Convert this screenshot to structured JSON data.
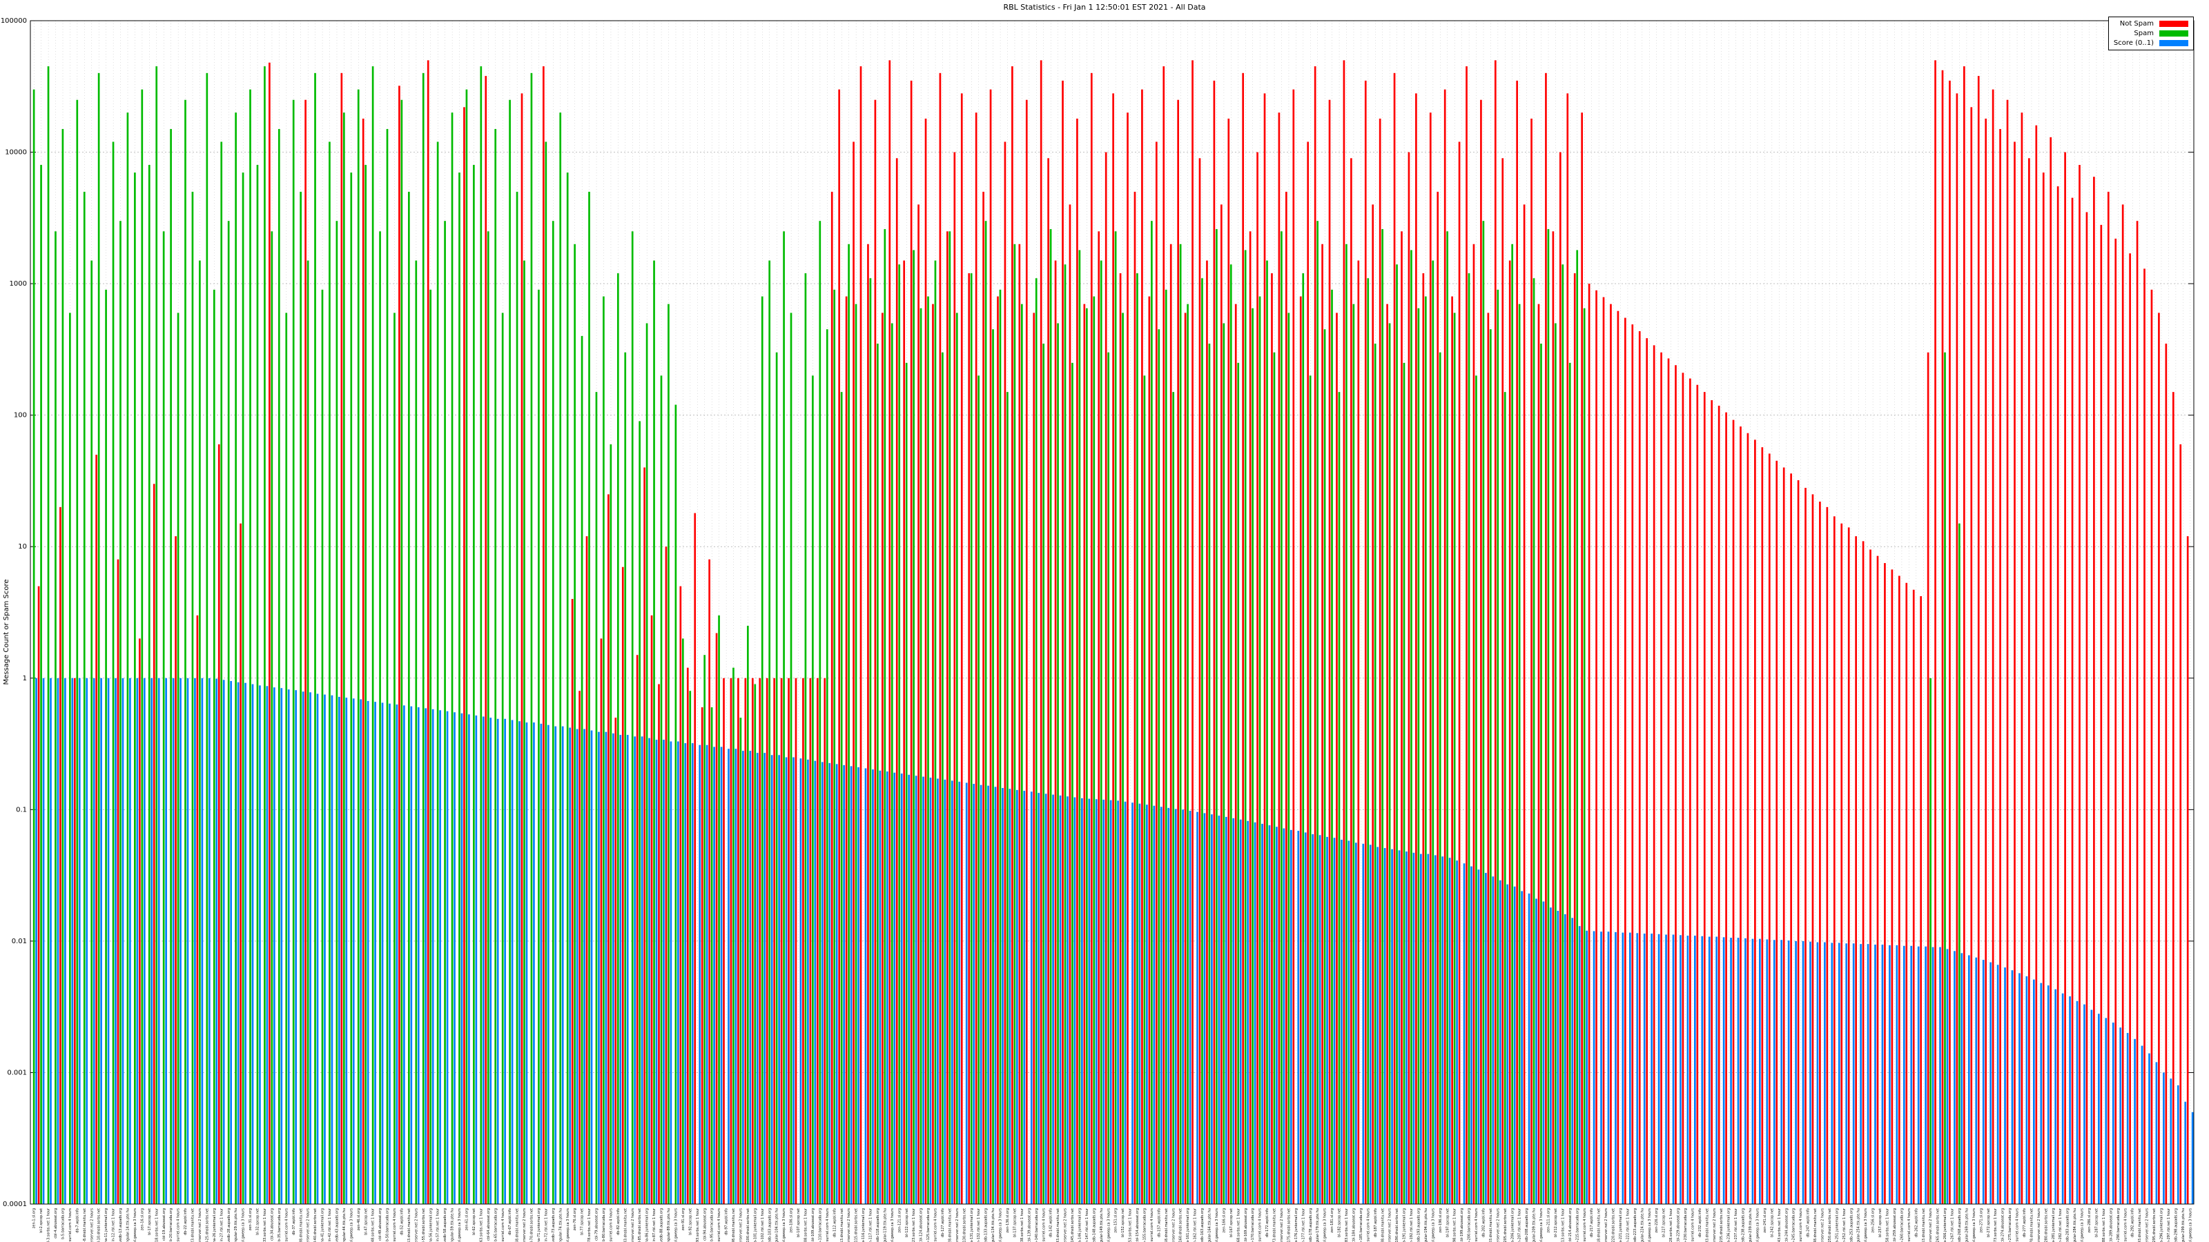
{
  "chart_data": {
    "type": "bar",
    "title": "RBL Statistics - Fri Jan  1 12:50:01 EST 2021 - All Data",
    "ylabel": "Message Count or Spam Score",
    "xlabel": "",
    "y_scale": "log",
    "ylim": [
      0.0001,
      100000
    ],
    "y_ticks": [
      100000,
      10000,
      1000,
      100,
      10,
      1,
      0.1,
      0.01,
      0.001,
      0.0001
    ],
    "y_tick_labels": [
      "100000",
      "10000",
      "1000",
      "100",
      "10",
      "1",
      "0.1",
      "0.01",
      "0.001",
      "0.0001"
    ],
    "grid": true,
    "legend_position": "top-right",
    "legend": [
      {
        "label": "Not Spam",
        "color": "#ff0000"
      },
      {
        "label": "Spam",
        "color": "#00bb00"
      },
      {
        "label": "Score (0..1)",
        "color": "#0080ff"
      }
    ],
    "x_label_note": "per-RBL tick labels rotated 90 degrees, illegible at capture resolution",
    "n_categories": 300,
    "x_tick_label_templates": [
      "zen-{n}.sl.org",
      "bl-{n}.spcop.net",
      "dnsbl-{n}.sorbs.net 1 hour",
      "cbl-{n}.abuseat.org",
      "b-{n}.barracuda.org",
      "psbl-{n}.surriel.com 4 hours",
      "db-{n}.wpbl.info",
      "ix-{n}.dnsbl.manitu.net",
      "rbl-{n}.interserver.net 2 hours",
      "dul-{n}.dnsbl.sorbs.net",
      "hostkarma-{n}.junkemail.org",
      "origin-{n}.rbl.net 1 hour",
      "orvedb-{n}.aupads.org",
      "singular-{n}.ttk.pte.hu",
      "relays-{n}.bl.gweep.ca 3 hours"
    ],
    "series": [
      {
        "name": "Not Spam",
        "color": "#ff0000",
        "values": [
          null,
          5,
          null,
          null,
          20,
          null,
          1,
          null,
          null,
          50,
          null,
          null,
          8,
          null,
          null,
          2,
          null,
          30,
          null,
          null,
          12,
          null,
          null,
          3,
          null,
          null,
          60,
          null,
          null,
          15,
          null,
          null,
          null,
          48000,
          null,
          null,
          null,
          null,
          25000,
          null,
          null,
          null,
          null,
          40000,
          null,
          null,
          18000,
          null,
          null,
          null,
          null,
          32000,
          null,
          null,
          null,
          50000,
          null,
          null,
          null,
          null,
          22000,
          null,
          null,
          38000,
          null,
          null,
          null,
          null,
          28000,
          null,
          null,
          45000,
          null,
          null,
          null,
          4,
          0.8,
          12,
          null,
          2,
          25,
          0.5,
          7,
          null,
          1.5,
          40,
          3,
          0.9,
          10,
          null,
          5,
          1.2,
          18,
          0.6,
          8,
          2.2,
          1,
          1,
          1,
          1,
          1,
          1,
          1,
          1,
          1,
          1,
          1,
          1,
          1,
          1,
          1,
          5000,
          30000,
          800,
          12000,
          45000,
          2000,
          25000,
          600,
          50000,
          9000,
          1500,
          35000,
          4000,
          18000,
          700,
          40000,
          2500,
          10000,
          28000,
          1200,
          20000,
          5000,
          30000,
          800,
          12000,
          45000,
          2000,
          25000,
          600,
          50000,
          9000,
          1500,
          35000,
          4000,
          18000,
          700,
          40000,
          2500,
          10000,
          28000,
          1200,
          20000,
          5000,
          30000,
          800,
          12000,
          45000,
          2000,
          25000,
          600,
          50000,
          9000,
          1500,
          35000,
          4000,
          18000,
          700,
          40000,
          2500,
          10000,
          28000,
          1200,
          20000,
          5000,
          30000,
          800,
          12000,
          45000,
          2000,
          25000,
          600,
          50000,
          9000,
          1500,
          35000,
          4000,
          18000,
          700,
          40000,
          2500,
          10000,
          28000,
          1200,
          20000,
          5000,
          30000,
          800,
          12000,
          45000,
          2000,
          25000,
          600,
          50000,
          9000,
          1500,
          35000,
          4000,
          18000,
          700,
          40000,
          2500,
          10000,
          28000,
          1200,
          20000,
          1000,
          890,
          790,
          700,
          620,
          550,
          490,
          435,
          385,
          340,
          300,
          270,
          240,
          210,
          190,
          170,
          150,
          130,
          118,
          105,
          92,
          82,
          73,
          65,
          57,
          51,
          45,
          40,
          36,
          32,
          28,
          25,
          22,
          20,
          17,
          15,
          14,
          12,
          11,
          9.5,
          8.5,
          7.5,
          6.7,
          6,
          5.3,
          4.7,
          4.2,
          300,
          50000,
          42000,
          35000,
          28000,
          45000,
          22000,
          38000,
          18000,
          30000,
          15000,
          25000,
          12000,
          20000,
          9000,
          16000,
          7000,
          13000,
          5500,
          10000,
          4500,
          8000,
          3500,
          6500,
          2800,
          5000,
          2200,
          4000,
          1700,
          3000,
          1300,
          900,
          600,
          350,
          150,
          60,
          12
        ]
      },
      {
        "name": "Spam",
        "color": "#00bb00",
        "values": [
          30000,
          8000,
          45000,
          2500,
          15000,
          600,
          25000,
          5000,
          1500,
          40000,
          900,
          12000,
          3000,
          20000,
          7000,
          30000,
          8000,
          45000,
          2500,
          15000,
          600,
          25000,
          5000,
          1500,
          40000,
          900,
          12000,
          3000,
          20000,
          7000,
          30000,
          8000,
          45000,
          2500,
          15000,
          600,
          25000,
          5000,
          1500,
          40000,
          900,
          12000,
          3000,
          20000,
          7000,
          30000,
          8000,
          45000,
          2500,
          15000,
          600,
          25000,
          5000,
          1500,
          40000,
          900,
          12000,
          3000,
          20000,
          7000,
          30000,
          8000,
          45000,
          2500,
          15000,
          600,
          25000,
          5000,
          1500,
          40000,
          900,
          12000,
          3000,
          20000,
          7000,
          2000,
          400,
          5000,
          150,
          800,
          60,
          1200,
          300,
          2500,
          90,
          500,
          1500,
          200,
          700,
          120,
          2,
          0.8,
          null,
          1.5,
          0.6,
          3,
          null,
          1.2,
          0.5,
          2.5,
          0.9,
          800,
          1500,
          300,
          2500,
          600,
          null,
          1200,
          200,
          3000,
          450,
          900,
          150,
          2000,
          700,
          null,
          1100,
          350,
          2600,
          500,
          1400,
          250,
          1800,
          650,
          800,
          1500,
          300,
          2500,
          600,
          null,
          1200,
          200,
          3000,
          450,
          900,
          150,
          2000,
          700,
          null,
          1100,
          350,
          2600,
          500,
          1400,
          250,
          1800,
          650,
          800,
          1500,
          300,
          2500,
          600,
          null,
          1200,
          200,
          3000,
          450,
          900,
          150,
          2000,
          700,
          null,
          1100,
          350,
          2600,
          500,
          1400,
          250,
          1800,
          650,
          800,
          1500,
          300,
          2500,
          600,
          null,
          1200,
          200,
          3000,
          450,
          900,
          150,
          2000,
          700,
          null,
          1100,
          350,
          2600,
          500,
          1400,
          250,
          1800,
          650,
          800,
          1500,
          300,
          2500,
          600,
          null,
          1200,
          200,
          3000,
          450,
          900,
          150,
          2000,
          700,
          null,
          1100,
          350,
          2600,
          500,
          1400,
          250,
          1800,
          650,
          null,
          null,
          null,
          null,
          null,
          null,
          null,
          null,
          null,
          null,
          null,
          null,
          null,
          null,
          null,
          null,
          null,
          null,
          null,
          null,
          null,
          null,
          null,
          null,
          null,
          null,
          null,
          null,
          null,
          null,
          null,
          null,
          null,
          null,
          null,
          null,
          null,
          null,
          null,
          null,
          null,
          null,
          null,
          null,
          null,
          null,
          null,
          1,
          null,
          300,
          null,
          15,
          null,
          null,
          null,
          null,
          null,
          null,
          null,
          null,
          null,
          null,
          null,
          null,
          null,
          null,
          null,
          null,
          null,
          null,
          null,
          null,
          null,
          null,
          null,
          null,
          null,
          null,
          null,
          null,
          null,
          null,
          null,
          null
        ]
      },
      {
        "name": "Score (0..1)",
        "color": "#0080ff",
        "values": [
          1,
          1,
          1,
          1,
          1,
          1,
          1,
          1,
          1,
          1,
          1,
          1,
          1,
          1,
          1,
          1,
          1,
          1,
          1,
          1,
          1,
          1,
          1,
          1,
          1,
          0.99,
          0.97,
          0.95,
          0.93,
          0.92,
          0.9,
          0.88,
          0.87,
          0.85,
          0.84,
          0.82,
          0.81,
          0.79,
          0.78,
          0.76,
          0.75,
          0.74,
          0.72,
          0.71,
          0.7,
          0.69,
          0.67,
          0.66,
          0.65,
          0.64,
          0.63,
          0.62,
          0.61,
          0.6,
          0.59,
          0.58,
          0.57,
          0.56,
          0.55,
          0.54,
          0.53,
          0.52,
          0.51,
          0.5,
          0.49,
          0.49,
          0.48,
          0.47,
          0.46,
          0.46,
          0.45,
          0.44,
          0.43,
          0.43,
          0.42,
          0.41,
          0.41,
          0.4,
          0.39,
          0.39,
          0.38,
          0.37,
          0.37,
          0.36,
          0.36,
          0.35,
          0.34,
          0.34,
          0.33,
          0.33,
          0.32,
          0.32,
          0.31,
          0.31,
          0.3,
          0.3,
          0.29,
          0.29,
          0.28,
          0.28,
          0.27,
          0.27,
          0.26,
          0.26,
          0.25,
          0.25,
          0.245,
          0.24,
          0.235,
          0.23,
          0.226,
          0.222,
          0.218,
          0.214,
          0.21,
          0.206,
          0.202,
          0.198,
          0.195,
          0.191,
          0.188,
          0.184,
          0.181,
          0.178,
          0.175,
          0.172,
          0.169,
          0.166,
          0.163,
          0.16,
          0.157,
          0.154,
          0.152,
          0.149,
          0.146,
          0.144,
          0.141,
          0.139,
          0.137,
          0.134,
          0.132,
          0.13,
          0.128,
          0.126,
          0.124,
          0.122,
          0.121,
          0.12,
          0.119,
          0.118,
          0.117,
          0.115,
          0.113,
          0.111,
          0.109,
          0.107,
          0.105,
          0.103,
          0.101,
          0.1,
          0.098,
          0.096,
          0.094,
          0.092,
          0.09,
          0.088,
          0.086,
          0.084,
          0.082,
          0.08,
          0.078,
          0.076,
          0.074,
          0.072,
          0.07,
          0.069,
          0.067,
          0.065,
          0.064,
          0.062,
          0.061,
          0.059,
          0.058,
          0.056,
          0.055,
          0.054,
          0.052,
          0.051,
          0.05,
          0.049,
          0.048,
          0.047,
          0.046,
          0.046,
          0.045,
          0.044,
          0.043,
          0.041,
          0.039,
          0.037,
          0.035,
          0.033,
          0.031,
          0.029,
          0.027,
          0.026,
          0.024,
          0.023,
          0.021,
          0.02,
          0.018,
          0.017,
          0.016,
          0.015,
          0.013,
          0.012,
          0.0119,
          0.0118,
          0.0118,
          0.0117,
          0.0116,
          0.0116,
          0.0115,
          0.0114,
          0.0114,
          0.0113,
          0.0112,
          0.0112,
          0.0111,
          0.011,
          0.011,
          0.0109,
          0.0108,
          0.0108,
          0.0107,
          0.0106,
          0.0106,
          0.0105,
          0.0104,
          0.0104,
          0.0103,
          0.0102,
          0.0102,
          0.0101,
          0.01,
          0.01,
          0.0099,
          0.0098,
          0.0098,
          0.0097,
          0.0097,
          0.0096,
          0.0096,
          0.0095,
          0.0095,
          0.0094,
          0.0094,
          0.0093,
          0.0093,
          0.0092,
          0.0092,
          0.0091,
          0.0091,
          0.009,
          0.009,
          0.0087,
          0.0084,
          0.0081,
          0.0078,
          0.0075,
          0.0072,
          0.0069,
          0.0066,
          0.0063,
          0.006,
          0.0057,
          0.0054,
          0.0051,
          0.0048,
          0.0046,
          0.0043,
          0.004,
          0.0038,
          0.0035,
          0.0033,
          0.003,
          0.0028,
          0.0026,
          0.0024,
          0.0022,
          0.002,
          0.0018,
          0.0016,
          0.0014,
          0.0012,
          0.001,
          0.0009,
          0.0008,
          0.0006,
          0.0005
        ]
      }
    ]
  }
}
